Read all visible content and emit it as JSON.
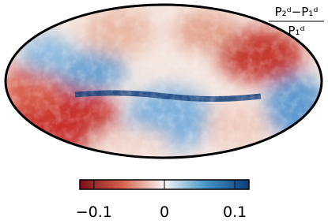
{
  "chart_data": {
    "type": "heatmap",
    "colorbar_label": {
      "numerator": "P₂ᵈ−P₁ᵈ",
      "denominator": "P₁ᵈ"
    },
    "colorbar": {
      "colors": [
        "#7a0f1c",
        "#d6604d",
        "#f7f7f7",
        "#4393c3",
        "#0b3d7a"
      ],
      "xlim": [
        -0.12,
        0.12
      ],
      "xticks": [
        {
          "value": -0.1,
          "label": "−0.1"
        },
        0,
        0.1
      ]
    }
  }
}
